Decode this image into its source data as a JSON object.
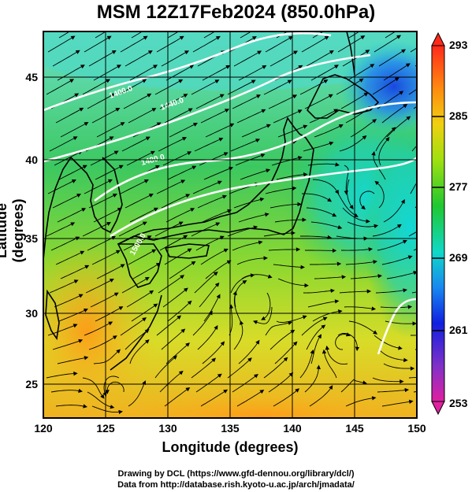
{
  "title": "MSM 12Z17Feb2024 (850.0hPa)",
  "map": {
    "x_label": "Longitude (degrees)",
    "y_label": "Latitude  (degrees)",
    "lon_range": [
      120,
      150
    ],
    "lat_range": [
      22.4,
      47.6
    ],
    "x_ticks": [
      "120",
      "125",
      "130",
      "135",
      "140",
      "145",
      "150"
    ],
    "y_ticks": [
      "25",
      "30",
      "35",
      "40",
      "45"
    ],
    "grid": true,
    "contour_labels": [
      "1400.0",
      "1440.0",
      "1480.0",
      "1500.0"
    ]
  },
  "colorbar": {
    "labels": [
      "293",
      "285",
      "277",
      "269",
      "261",
      "253"
    ],
    "min": 253,
    "max": 293,
    "colors": [
      "#e0208a",
      "#9932cc",
      "#0000ff",
      "#1e90ff",
      "#00e5e5",
      "#20c040",
      "#8ee000",
      "#e8e800",
      "#ffa500",
      "#ff3020"
    ]
  },
  "credits": {
    "line1": "Drawing by DCL (https://www.gfd-dennou.org/library/dcl/)",
    "line2": "Data from http://database.rish.kyoto-u.ac.jp/arch/jmadata/"
  }
}
